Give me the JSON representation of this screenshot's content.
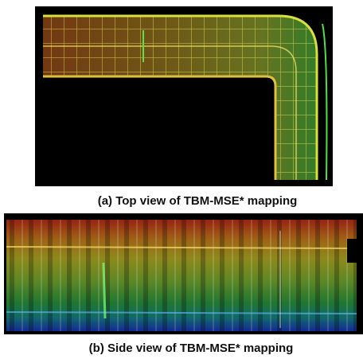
{
  "figure": {
    "panels": [
      {
        "caption": "(a) Top view of TBM-MSE* mapping"
      },
      {
        "caption": "(b) Side view of TBM-MSE* mapping"
      }
    ]
  }
}
